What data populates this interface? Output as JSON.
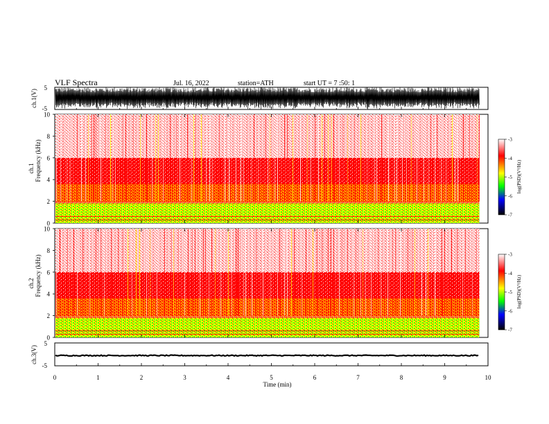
{
  "header": {
    "title": "VLF  Spectra",
    "date": "Jul.  16, 2022",
    "station": "station=ATH",
    "start_ut": "start  UT  =    7  :50: 1"
  },
  "chart_data": [
    {
      "type": "line",
      "panel": "ch1-waveform",
      "ylabel": "ch.1(V)",
      "ylim": [
        -5,
        5
      ],
      "yticks": [
        "5",
        "-5"
      ],
      "xlim": [
        0,
        10
      ],
      "amplitude_range": [
        -5,
        5
      ]
    },
    {
      "type": "heatmap",
      "panel": "ch1-spectrogram",
      "ylabel": [
        "ch.1",
        "Frequency  (kHz)"
      ],
      "ylim": [
        0,
        10
      ],
      "yticks": [
        "0",
        "2",
        "4",
        "6",
        "8",
        "10"
      ],
      "xlim": [
        0,
        10
      ],
      "data_end_min": 9.8,
      "colorbar": {
        "label": "log(PSD)(V²/Hz)",
        "range": [
          -7,
          -3
        ],
        "ticks": [
          "-3",
          "-4",
          "-5",
          "-6",
          "-7"
        ],
        "colors": [
          "#ffffff",
          "#ff0000",
          "#ffff00",
          "#00ff00",
          "#0000ff",
          "#000000"
        ]
      },
      "bands": [
        {
          "freq_khz": [
            0,
            1.8
          ],
          "level": -4.9,
          "dominant": "green"
        },
        {
          "freq_khz": [
            1.8,
            3.6
          ],
          "level": -4.3,
          "dominant": "yellow-red"
        },
        {
          "freq_khz": [
            3.6,
            6.0
          ],
          "level": -3.8,
          "dominant": "red"
        },
        {
          "freq_khz": [
            6.0,
            10.0
          ],
          "level": -3.4,
          "dominant": "red-white"
        }
      ]
    },
    {
      "type": "heatmap",
      "panel": "ch2-spectrogram",
      "ylabel": [
        "ch.2",
        "Frequency  (kHz)"
      ],
      "ylim": [
        0,
        10
      ],
      "yticks": [
        "0",
        "2",
        "4",
        "6",
        "8",
        "10"
      ],
      "xlim": [
        0,
        10
      ],
      "data_end_min": 9.8,
      "colorbar": {
        "label": "log(PSD)(V²/Hz)",
        "range": [
          -7,
          -3
        ],
        "ticks": [
          "-3",
          "-4",
          "-5",
          "-6",
          "-7"
        ],
        "colors": [
          "#ffffff",
          "#ff0000",
          "#ffff00",
          "#00ff00",
          "#0000ff",
          "#000000"
        ]
      },
      "bands": [
        {
          "freq_khz": [
            0,
            1.8
          ],
          "level": -4.9,
          "dominant": "green"
        },
        {
          "freq_khz": [
            1.8,
            3.6
          ],
          "level": -4.3,
          "dominant": "yellow-red"
        },
        {
          "freq_khz": [
            3.6,
            6.0
          ],
          "level": -3.8,
          "dominant": "red"
        },
        {
          "freq_khz": [
            6.0,
            10.0
          ],
          "level": -3.4,
          "dominant": "red-white"
        }
      ]
    },
    {
      "type": "line",
      "panel": "ch3-waveform",
      "ylabel": "ch.3(V)",
      "ylim": [
        -5,
        5
      ],
      "yticks": [
        "5",
        "-5"
      ],
      "xlim": [
        0,
        10
      ],
      "mean_value": -0.5,
      "amplitude_range": [
        -0.7,
        -0.3
      ]
    }
  ],
  "xaxis": {
    "label": "Time  (min)",
    "ticks": [
      "0",
      "1",
      "2",
      "3",
      "4",
      "5",
      "6",
      "7",
      "8",
      "9",
      "10"
    ]
  }
}
